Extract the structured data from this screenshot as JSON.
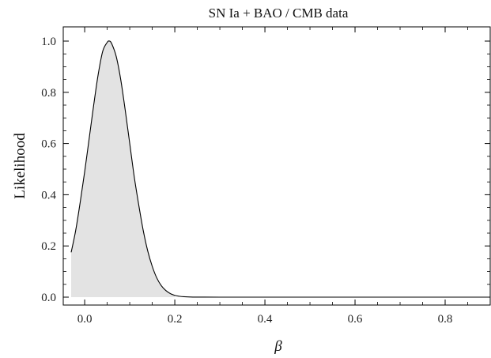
{
  "chart_data": {
    "type": "area",
    "title": "SN Ia + BAO / CMB data",
    "xlabel": "β",
    "ylabel": "Likelihood",
    "xlim": [
      -0.03,
      0.9
    ],
    "ylim": [
      0,
      1.05
    ],
    "x_ticks": [
      {
        "value": 0.0,
        "label": "0.0"
      },
      {
        "value": 0.2,
        "label": "0.2"
      },
      {
        "value": 0.4,
        "label": "0.4"
      },
      {
        "value": 0.6,
        "label": "0.6"
      },
      {
        "value": 0.8,
        "label": "0.8"
      }
    ],
    "y_ticks": [
      {
        "value": 0.0,
        "label": "0.0"
      },
      {
        "value": 0.2,
        "label": "0.2"
      },
      {
        "value": 0.4,
        "label": "0.4"
      },
      {
        "value": 0.6,
        "label": "0.6"
      },
      {
        "value": 0.8,
        "label": "0.8"
      },
      {
        "value": 1.0,
        "label": "1.0"
      }
    ],
    "grid": false,
    "series": [
      {
        "x": [
          -0.03,
          -0.02,
          -0.01,
          0.0,
          0.01,
          0.02,
          0.03,
          0.04,
          0.05,
          0.055,
          0.06,
          0.07,
          0.08,
          0.09,
          0.1,
          0.11,
          0.12,
          0.13,
          0.14,
          0.15,
          0.16,
          0.17,
          0.18,
          0.19,
          0.2,
          0.21,
          0.22,
          0.24,
          0.26,
          0.3,
          0.4,
          0.5,
          0.6,
          0.7,
          0.8,
          0.9
        ],
        "y": [
          0.175,
          0.26,
          0.37,
          0.49,
          0.62,
          0.75,
          0.87,
          0.96,
          0.995,
          1.0,
          0.99,
          0.94,
          0.85,
          0.73,
          0.6,
          0.47,
          0.36,
          0.26,
          0.18,
          0.12,
          0.075,
          0.045,
          0.026,
          0.014,
          0.007,
          0.0035,
          0.0016,
          0.0003,
          0.0001,
          0.0,
          0.0,
          0.0,
          0.0,
          0.0,
          0.0,
          0.0
        ],
        "shaded_until": 0.2
      }
    ],
    "colors": {
      "line": "#000000",
      "fill": "#e3e3e3",
      "axis": "#000000"
    }
  }
}
